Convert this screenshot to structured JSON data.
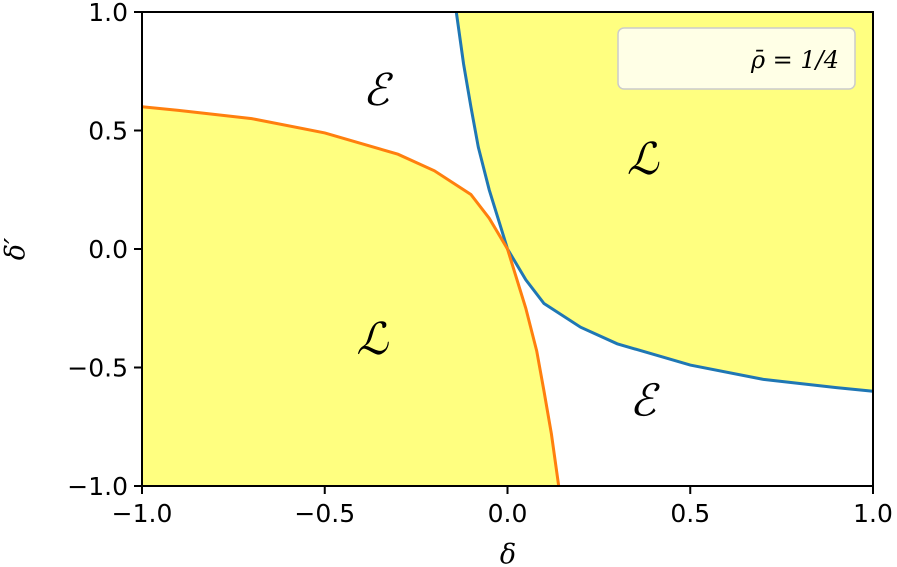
{
  "chart_data": {
    "type": "area",
    "xlabel": "δ",
    "ylabel": "δ′",
    "xlim": [
      -1.0,
      1.0
    ],
    "ylim": [
      -1.0,
      1.0
    ],
    "x_ticks": [
      {
        "value": -1.0,
        "label": "−1.0"
      },
      {
        "value": -0.5,
        "label": "−0.5"
      },
      {
        "value": 0.0,
        "label": "0.0"
      },
      {
        "value": 0.5,
        "label": "0.5"
      },
      {
        "value": 1.0,
        "label": "1.0"
      }
    ],
    "y_ticks": [
      {
        "value": -1.0,
        "label": "−1.0"
      },
      {
        "value": -0.5,
        "label": "−0.5"
      },
      {
        "value": 0.0,
        "label": "0.0"
      },
      {
        "value": 0.5,
        "label": "0.5"
      },
      {
        "value": 1.0,
        "label": "1.0"
      }
    ],
    "grid": false,
    "legend": {
      "text": "ρ̄ = 1/4",
      "placement": "top-right"
    },
    "curves": [
      {
        "color": "#1f77b4",
        "points": [
          [
            -0.14,
            1.0
          ],
          [
            -0.12,
            0.78
          ],
          [
            -0.1,
            0.6
          ],
          [
            -0.08,
            0.43
          ],
          [
            -0.05,
            0.25
          ],
          [
            -0.02,
            0.1
          ],
          [
            0.0,
            0.0
          ],
          [
            0.05,
            -0.13
          ],
          [
            0.1,
            -0.23
          ],
          [
            0.2,
            -0.33
          ],
          [
            0.3,
            -0.4
          ],
          [
            0.5,
            -0.49
          ],
          [
            0.7,
            -0.55
          ],
          [
            0.9,
            -0.585
          ],
          [
            1.0,
            -0.6
          ]
        ]
      },
      {
        "color": "#ff7f0e",
        "points": [
          [
            -1.0,
            0.6
          ],
          [
            -0.9,
            0.585
          ],
          [
            -0.7,
            0.55
          ],
          [
            -0.5,
            0.49
          ],
          [
            -0.3,
            0.4
          ],
          [
            -0.2,
            0.33
          ],
          [
            -0.1,
            0.23
          ],
          [
            -0.05,
            0.13
          ],
          [
            0.0,
            0.0
          ],
          [
            0.02,
            -0.1
          ],
          [
            0.05,
            -0.25
          ],
          [
            0.08,
            -0.43
          ],
          [
            0.1,
            -0.6
          ],
          [
            0.12,
            -0.78
          ],
          [
            0.14,
            -1.0
          ]
        ]
      }
    ],
    "regions": [
      {
        "label": "ℒ",
        "x": 0.37,
        "y": 0.38,
        "filled": true
      },
      {
        "label": "ℒ",
        "x": -0.37,
        "y": -0.38,
        "filled": true
      },
      {
        "label": "ℰ",
        "x": -0.36,
        "y": 0.67,
        "filled": false
      },
      {
        "label": "ℰ",
        "x": 0.37,
        "y": -0.64,
        "filled": false
      }
    ],
    "fill_color": "#ffff80"
  }
}
